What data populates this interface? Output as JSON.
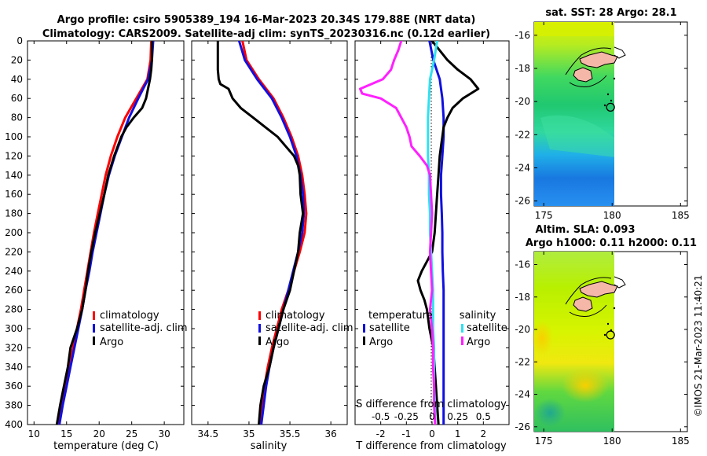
{
  "title": {
    "line1": "Argo profile: csiro 5905389_194 16-Mar-2023 20.34S 179.88E (NRT data)",
    "line2": "Climatology: CARS2009. Satellite-adj clim: synTS_20230316.nc (0.12d earlier)"
  },
  "watermark": "©IMOS 21-Mar-2023 11:40:21",
  "colors": {
    "climatology": "#ff0000",
    "satellite": "#1010e0",
    "argo": "#000000",
    "satellite_salinity": "#30e0f0",
    "argo_salinity": "#ff20ff"
  },
  "chart_data": [
    {
      "type": "line",
      "name": "temperature",
      "xlabel": "temperature (deg C)",
      "xlim": [
        9,
        33
      ],
      "ylim": [
        400,
        0
      ],
      "xticks": [
        10,
        15,
        20,
        25,
        30
      ],
      "yticks": [
        0,
        20,
        40,
        60,
        80,
        100,
        120,
        140,
        160,
        180,
        200,
        220,
        240,
        260,
        280,
        300,
        320,
        340,
        360,
        380,
        400
      ],
      "legend": [
        "climatology",
        "satellite-adj. clim",
        "Argo"
      ],
      "series": [
        {
          "name": "climatology",
          "color": "#ff0000",
          "depth": [
            0,
            20,
            40,
            60,
            80,
            100,
            120,
            140,
            160,
            180,
            200,
            220,
            240,
            260,
            280,
            300,
            320,
            340,
            360,
            380,
            400
          ],
          "values": [
            28.0,
            27.9,
            27.4,
            25.7,
            24.0,
            22.8,
            21.8,
            21.0,
            20.4,
            19.8,
            19.2,
            18.7,
            18.2,
            17.7,
            17.2,
            16.6,
            16.0,
            15.4,
            14.8,
            14.2,
            13.6
          ]
        },
        {
          "name": "satellite-adj. clim",
          "color": "#1010e0",
          "depth": [
            0,
            20,
            40,
            60,
            80,
            100,
            120,
            140,
            160,
            180,
            200,
            220,
            240,
            260,
            280,
            300,
            320,
            340,
            360,
            380,
            400
          ],
          "values": [
            28.3,
            28.1,
            27.5,
            26.0,
            24.6,
            23.5,
            22.4,
            21.5,
            20.8,
            20.2,
            19.6,
            19.0,
            18.5,
            17.9,
            17.4,
            16.8,
            16.2,
            15.6,
            15.0,
            14.4,
            13.9
          ]
        },
        {
          "name": "Argo",
          "color": "#000000",
          "depth": [
            0,
            10,
            20,
            30,
            40,
            50,
            60,
            70,
            80,
            90,
            100,
            120,
            140,
            160,
            180,
            200,
            220,
            240,
            260,
            280,
            300,
            320,
            340,
            360,
            380,
            400
          ],
          "values": [
            28.1,
            28.1,
            28.1,
            28.0,
            27.8,
            27.5,
            27.2,
            26.6,
            25.3,
            24.2,
            23.4,
            22.3,
            21.4,
            20.8,
            20.1,
            19.4,
            18.8,
            18.3,
            17.9,
            17.4,
            16.6,
            15.6,
            15.2,
            14.6,
            14.0,
            13.5
          ]
        }
      ]
    },
    {
      "type": "line",
      "name": "salinity",
      "xlabel": "salinity",
      "xlim": [
        34.3,
        36.2
      ],
      "ylim": [
        400,
        0
      ],
      "xticks": [
        34.5,
        35,
        35.5,
        36
      ],
      "xtick_labels": [
        "34.5",
        "35",
        "35.5",
        "36"
      ],
      "legend": [
        "climatology",
        "satellite-adj. clim",
        "Argo"
      ],
      "series": [
        {
          "name": "climatology",
          "color": "#ff0000",
          "depth": [
            0,
            20,
            40,
            60,
            80,
            100,
            120,
            140,
            160,
            180,
            200,
            220,
            240,
            260,
            280,
            300,
            320,
            340,
            360,
            380,
            400
          ],
          "values": [
            34.92,
            34.97,
            35.12,
            35.3,
            35.42,
            35.52,
            35.6,
            35.65,
            35.68,
            35.7,
            35.68,
            35.62,
            35.55,
            35.48,
            35.4,
            35.34,
            35.28,
            35.23,
            35.19,
            35.16,
            35.13
          ]
        },
        {
          "name": "satellite-adj. clim",
          "color": "#1010e0",
          "depth": [
            0,
            20,
            40,
            60,
            80,
            100,
            120,
            140,
            160,
            180,
            200,
            220,
            240,
            260,
            280,
            300,
            320,
            340,
            360,
            380,
            400
          ],
          "values": [
            34.88,
            34.95,
            35.1,
            35.28,
            35.4,
            35.5,
            35.58,
            35.63,
            35.66,
            35.67,
            35.65,
            35.6,
            35.54,
            35.48,
            35.42,
            35.36,
            35.3,
            35.25,
            35.21,
            35.18,
            35.15
          ]
        },
        {
          "name": "Argo",
          "color": "#000000",
          "depth": [
            0,
            10,
            20,
            30,
            40,
            45,
            50,
            60,
            70,
            80,
            90,
            100,
            110,
            120,
            130,
            140,
            160,
            180,
            200,
            220,
            240,
            260,
            280,
            300,
            320,
            340,
            360,
            380,
            400
          ],
          "values": [
            34.62,
            34.62,
            34.62,
            34.62,
            34.63,
            34.65,
            34.75,
            34.8,
            34.9,
            35.05,
            35.2,
            35.35,
            35.45,
            35.55,
            35.6,
            35.62,
            35.63,
            35.66,
            35.62,
            35.6,
            35.55,
            35.5,
            35.42,
            35.36,
            35.3,
            35.25,
            35.18,
            35.14,
            35.12
          ]
        }
      ]
    },
    {
      "type": "line",
      "name": "difference",
      "xlabel": "T difference from climatology",
      "xlabel_top": "S difference from climatology",
      "xlim": [
        -3,
        3
      ],
      "ylim": [
        400,
        0
      ],
      "xticks": [
        -2,
        -1,
        0,
        1,
        2
      ],
      "s_xticks": [
        -0.5,
        -0.25,
        0,
        0.25,
        0.5
      ],
      "s_xtick_labels": [
        "-0.5",
        "-0.25",
        "0",
        "0.25",
        "0.5"
      ],
      "legend": {
        "temperature_title": "temperature",
        "salinity_title": "salinity",
        "satellite": "satellite",
        "argo": "Argo"
      },
      "series": [
        {
          "name": "temperature satellite",
          "color": "#1010e0",
          "depth": [
            0,
            20,
            40,
            60,
            80,
            100,
            120,
            140,
            160,
            180,
            200,
            220,
            240,
            260,
            280,
            300,
            320,
            340,
            360,
            380,
            400
          ],
          "values": [
            -0.1,
            0.05,
            0.3,
            0.4,
            0.45,
            0.45,
            0.4,
            0.35,
            0.35,
            0.38,
            0.4,
            0.4,
            0.42,
            0.45,
            0.45,
            0.45,
            0.45,
            0.45,
            0.45,
            0.45,
            0.45
          ]
        },
        {
          "name": "temperature Argo",
          "color": "#000000",
          "depth": [
            0,
            10,
            20,
            30,
            40,
            50,
            55,
            60,
            70,
            80,
            90,
            100,
            110,
            120,
            140,
            160,
            180,
            200,
            220,
            240,
            250,
            260,
            270,
            280,
            300,
            320,
            340,
            360,
            380,
            400
          ],
          "values": [
            0.0,
            0.3,
            0.6,
            1.0,
            1.5,
            1.8,
            1.5,
            1.2,
            0.8,
            0.6,
            0.45,
            0.4,
            0.35,
            0.3,
            0.25,
            0.2,
            0.15,
            0.1,
            0.0,
            -0.4,
            -0.55,
            -0.45,
            -0.3,
            -0.2,
            -0.1,
            0.05,
            0.1,
            0.15,
            0.2,
            0.25
          ]
        },
        {
          "name": "salinity satellite",
          "color": "#30e0f0",
          "depth": [
            0,
            20,
            40,
            60,
            80,
            100,
            120,
            140,
            160,
            180,
            200,
            220,
            240,
            260,
            280,
            300,
            320,
            340,
            360,
            380,
            400
          ],
          "values": [
            0.05,
            0.02,
            -0.02,
            -0.03,
            -0.04,
            -0.04,
            -0.04,
            -0.03,
            -0.03,
            -0.02,
            -0.02,
            -0.01,
            0.0,
            0.01,
            0.01,
            0.01,
            0.02,
            0.02,
            0.02,
            0.03,
            0.03
          ]
        },
        {
          "name": "salinity Argo",
          "color": "#ff20ff",
          "depth": [
            0,
            10,
            20,
            30,
            40,
            50,
            55,
            60,
            70,
            80,
            90,
            100,
            110,
            120,
            130,
            140,
            160,
            180,
            200,
            220,
            240,
            260,
            280,
            300,
            320,
            340,
            360,
            380,
            400
          ],
          "values": [
            -0.3,
            -0.33,
            -0.37,
            -0.4,
            -0.48,
            -0.7,
            -0.68,
            -0.5,
            -0.35,
            -0.3,
            -0.25,
            -0.22,
            -0.2,
            -0.12,
            -0.05,
            -0.02,
            -0.01,
            0.0,
            -0.01,
            -0.02,
            -0.01,
            0.0,
            -0.02,
            0.0,
            0.01,
            0.01,
            0.02,
            0.02,
            0.03
          ]
        }
      ]
    },
    {
      "type": "heatmap",
      "name": "sst_map",
      "title": "sat. SST: 28 Argo: 28.1",
      "xlim": [
        174.3,
        185.5
      ],
      "ylim": [
        -26.3,
        -15.2
      ],
      "xticks": [
        175,
        180,
        185
      ],
      "yticks": [
        -16,
        -18,
        -20,
        -22,
        -24,
        -26
      ],
      "profile_location": {
        "lon": 179.88,
        "lat": -20.34
      }
    },
    {
      "type": "heatmap",
      "name": "sla_map",
      "title": "Altim. SLA: 0.093",
      "subtitle": "Argo h1000: 0.11 h2000: 0.11",
      "xlim": [
        174.3,
        185.5
      ],
      "ylim": [
        -26.3,
        -15.2
      ],
      "xticks": [
        175,
        180,
        185
      ],
      "yticks": [
        -16,
        -18,
        -20,
        -22,
        -24,
        -26
      ],
      "profile_location": {
        "lon": 179.88,
        "lat": -20.34
      }
    }
  ]
}
